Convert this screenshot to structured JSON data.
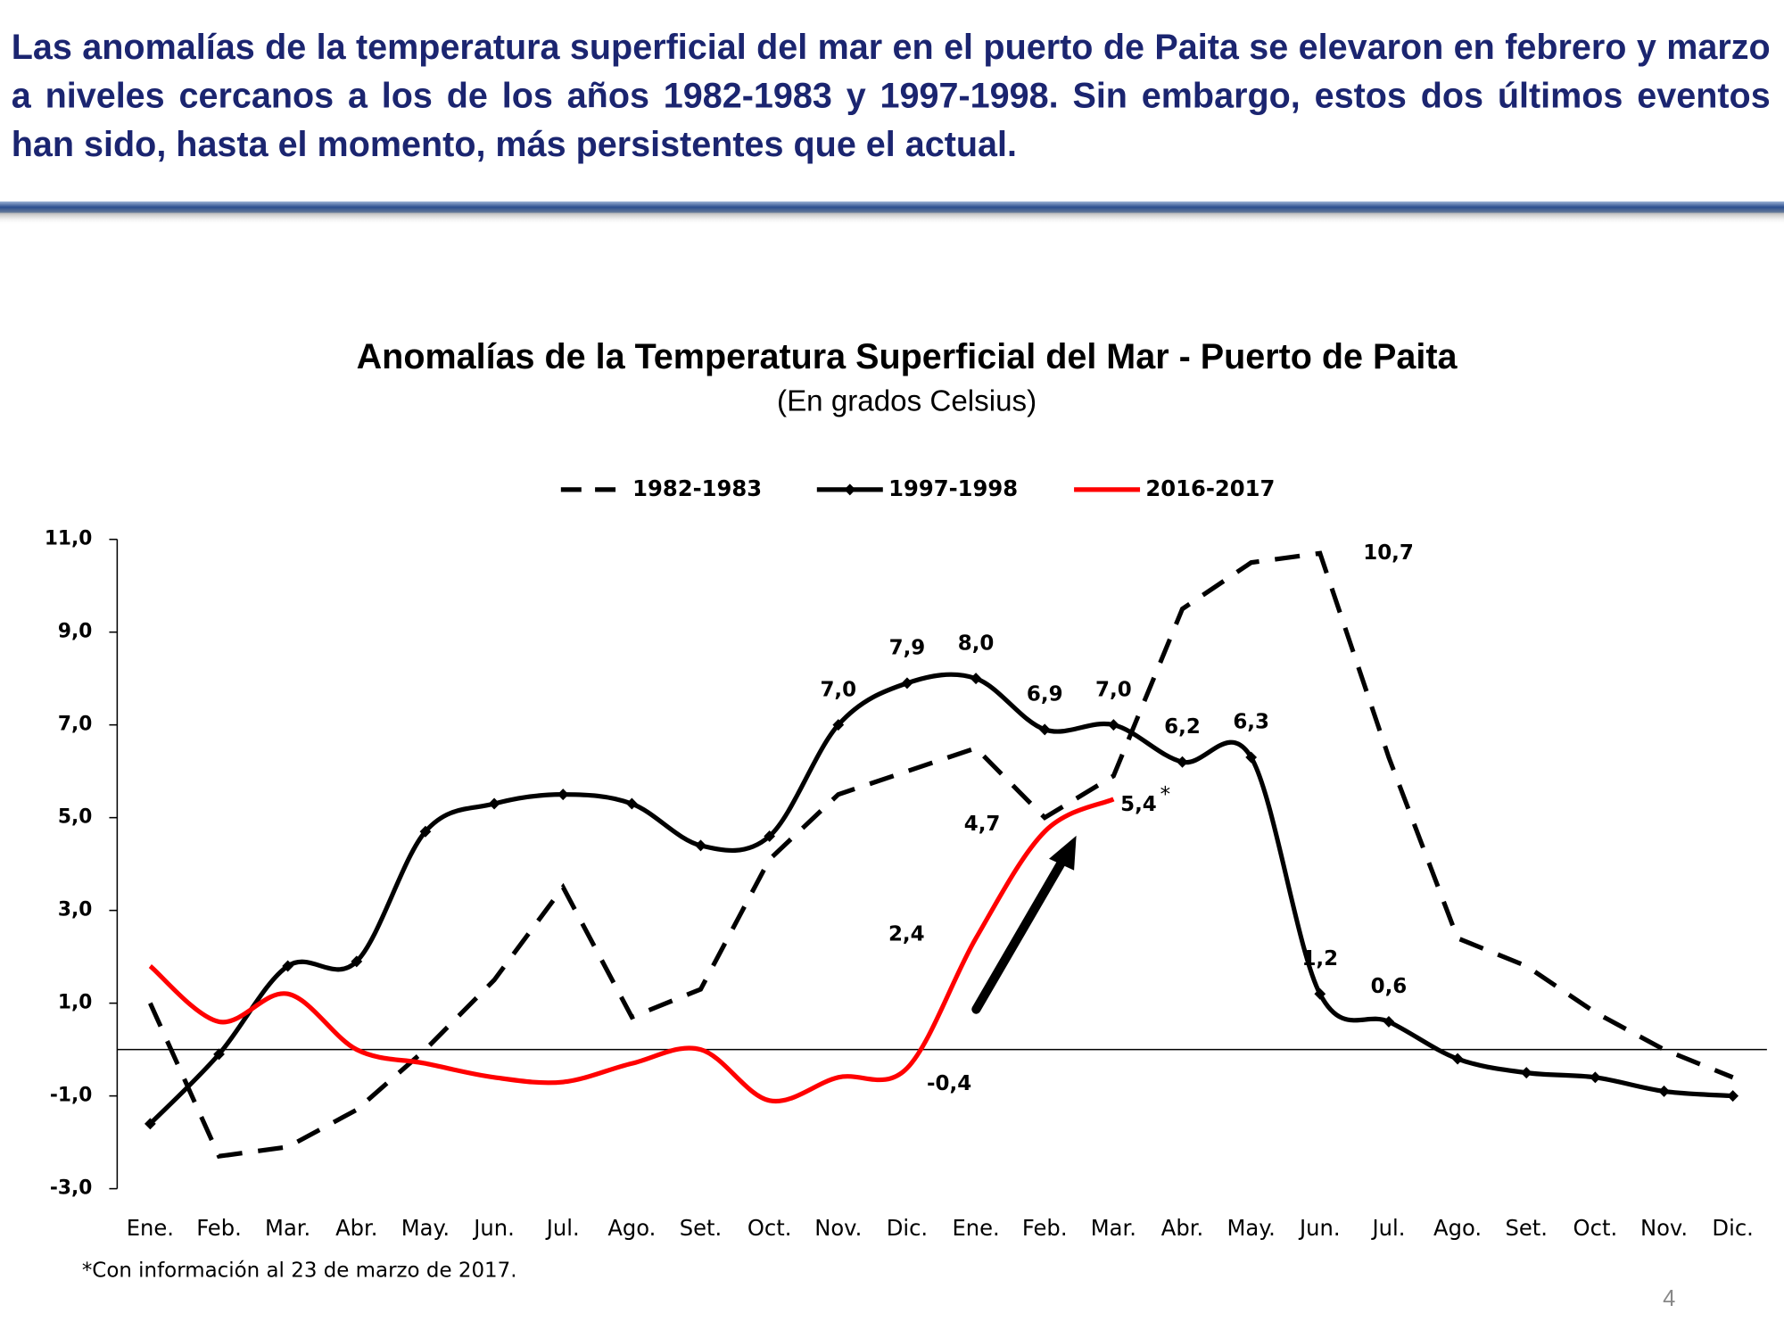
{
  "header": {
    "text": "Las anomalías de la temperatura superficial del mar en el puerto de Paita se elevaron en febrero y marzo a niveles cercanos a los de los años 1982-1983 y 1997-1998. Sin embargo, estos dos últimos eventos han sido, hasta el momento, más persistentes que el actual."
  },
  "chart_data": {
    "type": "line",
    "title": "Anomalías de la Temperatura Superficial del Mar - Puerto de Paita",
    "subtitle": "(En grados Celsius)",
    "categories": [
      "Ene.",
      "Feb.",
      "Mar.",
      "Abr.",
      "May.",
      "Jun.",
      "Jul.",
      "Ago.",
      "Set.",
      "Oct.",
      "Nov.",
      "Dic.",
      "Ene.",
      "Feb.",
      "Mar.",
      "Abr.",
      "May.",
      "Jun.",
      "Jul.",
      "Ago.",
      "Set.",
      "Oct.",
      "Nov.",
      "Dic."
    ],
    "ylim": [
      -3,
      11
    ],
    "yticks": [
      {
        "value": -3,
        "label": "-3,0"
      },
      {
        "value": -1,
        "label": "-1,0"
      },
      {
        "value": 1,
        "label": "1,0"
      },
      {
        "value": 3,
        "label": "3,0"
      },
      {
        "value": 5,
        "label": "5,0"
      },
      {
        "value": 7,
        "label": "7,0"
      },
      {
        "value": 9,
        "label": "9,0"
      },
      {
        "value": 11,
        "label": "11,0"
      }
    ],
    "legend": "top",
    "series": [
      {
        "name": "1982-1983",
        "color": "#000000",
        "style": "dashed",
        "values": [
          1.0,
          -2.3,
          -2.1,
          -1.3,
          0.0,
          1.5,
          3.5,
          0.7,
          1.3,
          4.1,
          5.5,
          6.0,
          6.5,
          5.0,
          5.9,
          9.5,
          10.5,
          10.7,
          6.3,
          2.4,
          1.8,
          0.8,
          0.0,
          -0.6
        ],
        "value_labels": [
          null,
          null,
          null,
          null,
          null,
          null,
          null,
          null,
          null,
          null,
          null,
          null,
          null,
          null,
          null,
          null,
          null,
          "10,7",
          null,
          null,
          null,
          null,
          null,
          null
        ]
      },
      {
        "name": "1997-1998",
        "color": "#000000",
        "style": "solid",
        "markers": true,
        "values": [
          -1.6,
          -0.1,
          1.8,
          1.9,
          4.7,
          5.3,
          5.5,
          5.3,
          4.4,
          4.6,
          7.0,
          7.9,
          8.0,
          6.9,
          7.0,
          6.2,
          6.3,
          1.2,
          0.6,
          -0.2,
          -0.5,
          -0.6,
          -0.9,
          -1.0
        ],
        "value_labels": [
          null,
          null,
          null,
          null,
          null,
          null,
          null,
          null,
          null,
          null,
          "7,0",
          "7,9",
          "8,0",
          "6,9",
          "7,0",
          "6,2",
          "6,3",
          "1,2",
          "0,6",
          null,
          null,
          null,
          null,
          null
        ]
      },
      {
        "name": "2016-2017",
        "color": "#ff0000",
        "style": "solid",
        "values": [
          1.8,
          0.6,
          1.2,
          0.0,
          -0.3,
          -0.6,
          -0.7,
          -0.3,
          0.0,
          -1.1,
          -0.6,
          -0.4,
          2.4,
          4.7,
          5.4,
          null,
          null,
          null,
          null,
          null,
          null,
          null,
          null,
          null
        ],
        "value_labels": [
          null,
          null,
          null,
          null,
          null,
          null,
          null,
          null,
          null,
          null,
          null,
          "-0,4",
          "2,4",
          "4,7",
          "5,4",
          null,
          null,
          null,
          null,
          null,
          null,
          null,
          null,
          null
        ]
      }
    ],
    "marker_note": "*",
    "footnote": "*Con información al 23 de marzo de 2017.",
    "page_number": "4"
  }
}
